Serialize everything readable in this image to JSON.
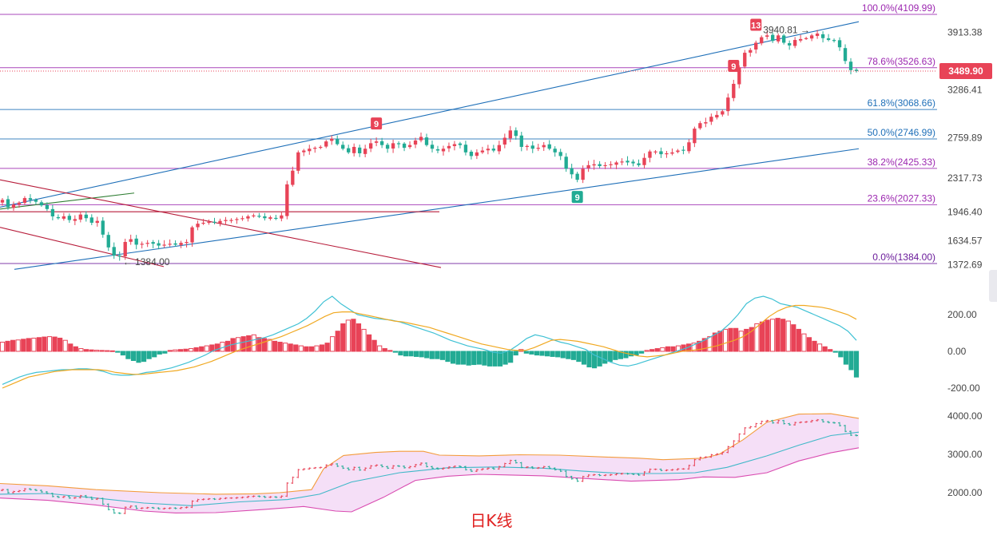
{
  "chart_data": {
    "type": "candlestick",
    "colors": {
      "up": "#e84357",
      "down": "#22ab94",
      "fib": "#9c27b0",
      "channel": "#1e6fb8",
      "downtrend": "#b71c3a",
      "short_trend": "#2e7d32",
      "macd_dif": "#3fc1d4",
      "macd_dea": "#f0a820",
      "boll_upper": "#f39c3c",
      "boll_mid": "#3fb8c8",
      "boll_lower": "#d94bb0",
      "boll_fill": "#f3d7f5"
    },
    "main": {
      "y_ticks": [
        "3913.38",
        "3286.41",
        "2759.89",
        "2317.73",
        "1946.40",
        "1634.57",
        "1372.69"
      ],
      "y_tick_values": [
        3913.38,
        3286.41,
        2759.89,
        2317.73,
        1946.4,
        1634.57,
        1372.69
      ],
      "last_price_label": "3489.90",
      "last_price": 3489.9,
      "fib_levels": [
        {
          "label": "100.0%(4109.99)",
          "value": 4109.99,
          "color": "#9c27b0"
        },
        {
          "label": "78.6%(3526.63)",
          "value": 3526.63,
          "color": "#9c27b0"
        },
        {
          "label": "61.8%(3068.66)",
          "value": 3068.66,
          "color": "#1e6fb8"
        },
        {
          "label": "50.0%(2746.99)",
          "value": 2746.99,
          "color": "#1e6fb8"
        },
        {
          "label": "38.2%(2425.33)",
          "value": 2425.33,
          "color": "#9c27b0"
        },
        {
          "label": "23.6%(2027.33)",
          "value": 2027.33,
          "color": "#9c27b0"
        },
        {
          "label": "0.0%(1384.00)",
          "value": 1384.0,
          "color": "#6a1b9a"
        }
      ],
      "annotations": [
        {
          "text": "3940.81",
          "value": 3940.81
        },
        {
          "text": "1384.00",
          "value": 1384.0
        }
      ],
      "markers": [
        "13",
        "9",
        "9",
        "9"
      ],
      "closes": [
        2080,
        2000,
        2030,
        2050,
        2100,
        2080,
        2060,
        2020,
        1980,
        1900,
        1880,
        1900,
        1860,
        1870,
        1920,
        1880,
        1830,
        1850,
        1700,
        1560,
        1470,
        1460,
        1620,
        1650,
        1590,
        1600,
        1610,
        1600,
        1580,
        1590,
        1600,
        1590,
        1610,
        1620,
        1780,
        1820,
        1830,
        1840,
        1830,
        1850,
        1860,
        1860,
        1870,
        1880,
        1900,
        1910,
        1900,
        1880,
        1890,
        1880,
        1910,
        2250,
        2400,
        2600,
        2620,
        2640,
        2650,
        2660,
        2720,
        2750,
        2690,
        2640,
        2600,
        2660,
        2590,
        2640,
        2700,
        2720,
        2680,
        2640,
        2700,
        2690,
        2650,
        2680,
        2730,
        2770,
        2680,
        2640,
        2620,
        2640,
        2670,
        2690,
        2680,
        2600,
        2560,
        2600,
        2620,
        2640,
        2620,
        2680,
        2760,
        2840,
        2780,
        2660,
        2670,
        2640,
        2650,
        2680,
        2640,
        2600,
        2560,
        2420,
        2360,
        2300,
        2420,
        2460,
        2470,
        2450,
        2460,
        2470,
        2490,
        2500,
        2490,
        2480,
        2460,
        2540,
        2610,
        2610,
        2580,
        2590,
        2600,
        2620,
        2620,
        2710,
        2860,
        2920,
        2930,
        2990,
        3010,
        3050,
        3200,
        3350,
        3530,
        3690,
        3720,
        3800,
        3860,
        3880,
        3820,
        3880,
        3800,
        3770,
        3830,
        3840,
        3850,
        3880,
        3900,
        3850,
        3830,
        3820,
        3750,
        3600,
        3500,
        3490
      ],
      "channel_upper": [
        [
          0,
          2000
        ],
        [
          1075,
          4030
        ]
      ],
      "channel_lower": [
        [
          18,
          1320
        ],
        [
          1075,
          2640
        ]
      ],
      "short_trend": [
        [
          0,
          1980
        ],
        [
          168,
          2155
        ]
      ],
      "downtrend_upper": [
        [
          0,
          2300
        ],
        [
          552,
          1340
        ]
      ],
      "downtrend_lower": [
        [
          0,
          1780
        ],
        [
          205,
          1350
        ]
      ],
      "support_line": [
        [
          0,
          1950
        ],
        [
          550,
          1950
        ]
      ]
    },
    "macd": {
      "y_ticks": [
        "200.00",
        "0.00",
        "-200.00"
      ],
      "y_tick_values": [
        200,
        0,
        -200
      ],
      "hist": [
        50,
        55,
        60,
        62,
        66,
        70,
        72,
        75,
        78,
        80,
        78,
        72,
        60,
        40,
        25,
        15,
        10,
        8,
        6,
        5,
        4,
        3,
        -5,
        -20,
        -40,
        -50,
        -60,
        -55,
        -40,
        -30,
        -15,
        -10,
        5,
        8,
        10,
        12,
        15,
        20,
        25,
        30,
        35,
        40,
        50,
        55,
        70,
        75,
        80,
        85,
        90,
        75,
        70,
        65,
        55,
        50,
        45,
        40,
        35,
        30,
        25,
        25,
        30,
        35,
        45,
        80,
        110,
        150,
        170,
        175,
        150,
        120,
        90,
        60,
        30,
        15,
        5,
        -5,
        -20,
        -25,
        -25,
        -28,
        -30,
        -35,
        -40,
        -40,
        -45,
        -55,
        -65,
        -70,
        -70,
        -75,
        -72,
        -70,
        -75,
        -80,
        -80,
        -80,
        -70,
        -60,
        -20,
        10,
        -10,
        -15,
        -20,
        -22,
        -25,
        -28,
        -30,
        -35,
        -40,
        -45,
        -55,
        -70,
        -85,
        -90,
        -80,
        -65,
        -55,
        -45,
        -40,
        -35,
        -25,
        -20,
        -10,
        5,
        10,
        15,
        20,
        25,
        25,
        30,
        35,
        40,
        45,
        55,
        70,
        80,
        100,
        110,
        120,
        125,
        125,
        110,
        120,
        130,
        150,
        160,
        170,
        175,
        180,
        175,
        165,
        145,
        120,
        95,
        75,
        55,
        40,
        25,
        10,
        -5,
        -30,
        -70,
        -100,
        -140
      ],
      "dif": [
        -180,
        -160,
        -140,
        -125,
        -115,
        -110,
        -105,
        -100,
        -100,
        -95,
        -95,
        -100,
        -110,
        -125,
        -130,
        -130,
        -125,
        -115,
        -110,
        -100,
        -90,
        -75,
        -60,
        -40,
        -20,
        5,
        20,
        35,
        45,
        55,
        65,
        75,
        90,
        110,
        130,
        150,
        180,
        220,
        270,
        300,
        260,
        230,
        200,
        190,
        180,
        175,
        170,
        160,
        145,
        130,
        115,
        100,
        80,
        60,
        45,
        30,
        20,
        10,
        -5,
        -10,
        5,
        35,
        70,
        90,
        80,
        65,
        50,
        40,
        25,
        10,
        -20,
        -40,
        -60,
        -75,
        -80,
        -70,
        -55,
        -40,
        -25,
        -10,
        5,
        20,
        40,
        60,
        85,
        110,
        150,
        200,
        260,
        290,
        300,
        285,
        260,
        250,
        240,
        220,
        200,
        180,
        160,
        140,
        110,
        60
      ],
      "dea": [
        -200,
        -180,
        -160,
        -140,
        -130,
        -120,
        -110,
        -105,
        -100,
        -100,
        -100,
        -100,
        -105,
        -115,
        -120,
        -125,
        -125,
        -120,
        -115,
        -110,
        -105,
        -95,
        -85,
        -70,
        -55,
        -35,
        -15,
        5,
        20,
        35,
        50,
        65,
        80,
        100,
        120,
        140,
        165,
        190,
        210,
        215,
        215,
        205,
        195,
        185,
        175,
        165,
        160,
        150,
        140,
        130,
        115,
        100,
        85,
        70,
        55,
        40,
        30,
        20,
        10,
        5,
        5,
        20,
        40,
        60,
        65,
        60,
        55,
        45,
        35,
        25,
        10,
        -5,
        -15,
        -25,
        -30,
        -25,
        -20,
        -10,
        0,
        5,
        10,
        20,
        30,
        45,
        60,
        80,
        110,
        150,
        190,
        220,
        240,
        250,
        250,
        245,
        240,
        230,
        215,
        200,
        175
      ],
      "zero_value": 0
    },
    "boll": {
      "y_ticks": [
        "4000.00",
        "3000.00",
        "2000.00"
      ],
      "y_tick_values": [
        4000,
        3000,
        2000
      ],
      "upper": [
        [
          0,
          2240
        ],
        [
          60,
          2180
        ],
        [
          120,
          2080
        ],
        [
          200,
          2000
        ],
        [
          270,
          1960
        ],
        [
          320,
          1970
        ],
        [
          350,
          2000
        ],
        [
          390,
          2080
        ],
        [
          405,
          2620
        ],
        [
          430,
          2970
        ],
        [
          470,
          3050
        ],
        [
          500,
          3080
        ],
        [
          530,
          3080
        ],
        [
          550,
          2980
        ],
        [
          600,
          2960
        ],
        [
          650,
          2990
        ],
        [
          700,
          2980
        ],
        [
          760,
          2930
        ],
        [
          800,
          2900
        ],
        [
          830,
          2860
        ],
        [
          880,
          2900
        ],
        [
          900,
          3000
        ],
        [
          930,
          3380
        ],
        [
          960,
          3840
        ],
        [
          1000,
          4050
        ],
        [
          1040,
          4060
        ],
        [
          1075,
          3940
        ]
      ],
      "mid": [
        [
          0,
          1960
        ],
        [
          60,
          1980
        ],
        [
          120,
          1860
        ],
        [
          180,
          1730
        ],
        [
          240,
          1660
        ],
        [
          300,
          1760
        ],
        [
          360,
          1820
        ],
        [
          400,
          1960
        ],
        [
          440,
          2280
        ],
        [
          500,
          2520
        ],
        [
          560,
          2650
        ],
        [
          620,
          2670
        ],
        [
          680,
          2640
        ],
        [
          730,
          2560
        ],
        [
          780,
          2500
        ],
        [
          830,
          2500
        ],
        [
          870,
          2520
        ],
        [
          910,
          2660
        ],
        [
          960,
          2960
        ],
        [
          1000,
          3240
        ],
        [
          1040,
          3490
        ],
        [
          1075,
          3580
        ]
      ],
      "lower": [
        [
          0,
          1860
        ],
        [
          60,
          1800
        ],
        [
          120,
          1680
        ],
        [
          180,
          1520
        ],
        [
          220,
          1470
        ],
        [
          270,
          1480
        ],
        [
          330,
          1560
        ],
        [
          380,
          1640
        ],
        [
          420,
          1520
        ],
        [
          440,
          1500
        ],
        [
          480,
          1880
        ],
        [
          520,
          2320
        ],
        [
          560,
          2430
        ],
        [
          600,
          2480
        ],
        [
          640,
          2460
        ],
        [
          680,
          2440
        ],
        [
          740,
          2360
        ],
        [
          790,
          2300
        ],
        [
          850,
          2340
        ],
        [
          880,
          2410
        ],
        [
          920,
          2400
        ],
        [
          960,
          2520
        ],
        [
          1000,
          2830
        ],
        [
          1040,
          3040
        ],
        [
          1075,
          3170
        ]
      ]
    }
  },
  "caption": "日K线"
}
